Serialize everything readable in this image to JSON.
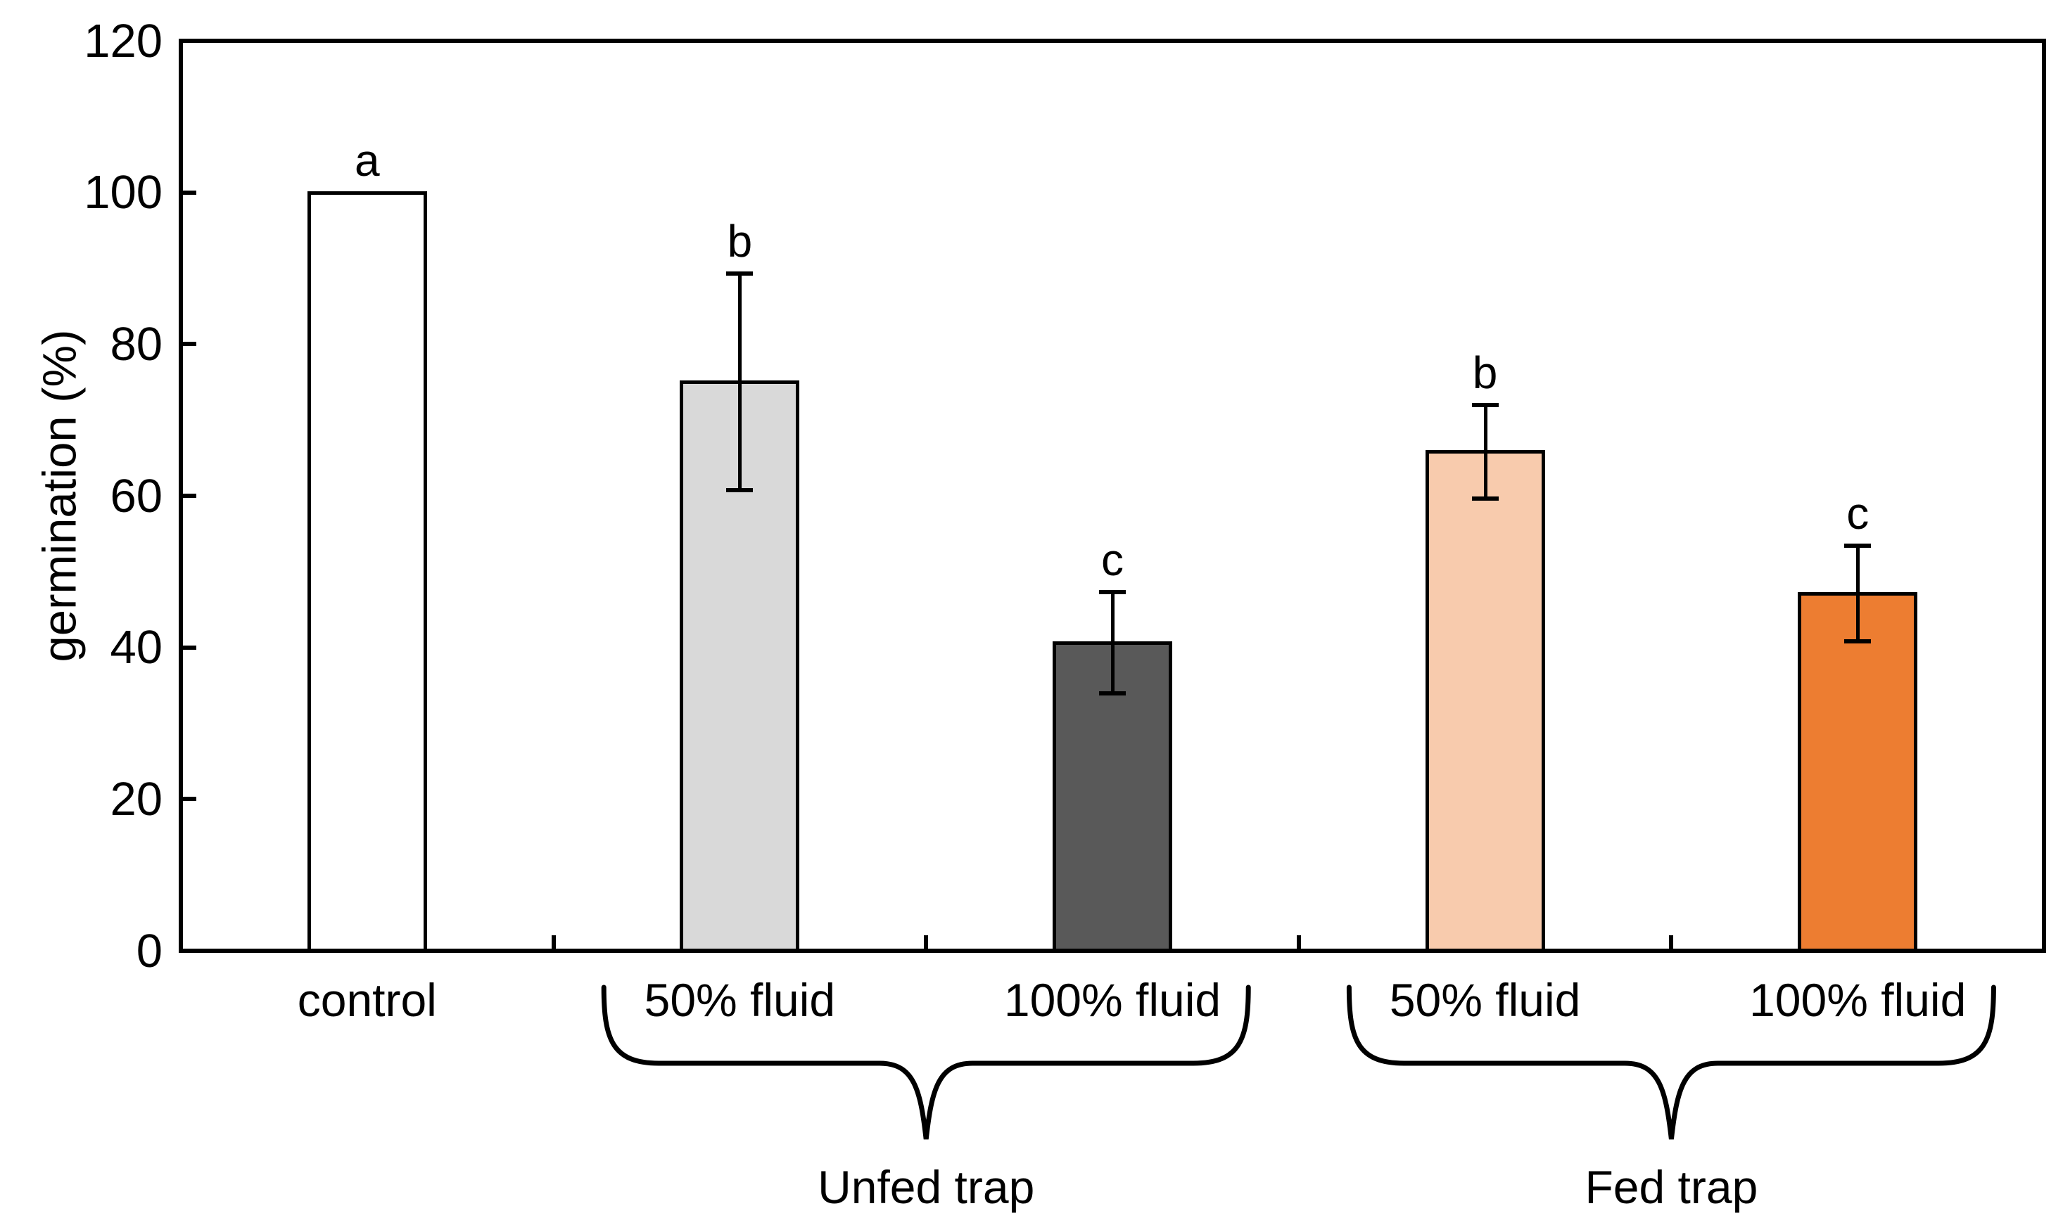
{
  "chart_data": {
    "type": "bar",
    "title": "",
    "xlabel": "",
    "ylabel": "germination (%)",
    "ylim": [
      0,
      120
    ],
    "yticks": [
      0,
      20,
      40,
      60,
      80,
      100,
      120
    ],
    "grid": false,
    "legend": "none",
    "frame": "full-box",
    "categories": [
      "control",
      "50% fluid",
      "100% fluid",
      "50% fluid",
      "100% fluid"
    ],
    "series": [
      {
        "name": "germination",
        "values": [
          100,
          75,
          40.6,
          65.8,
          47.1
        ],
        "errors": [
          null,
          14.3,
          6.7,
          6.2,
          6.3
        ],
        "significance_letters": [
          "a",
          "b",
          "c",
          "b",
          "c"
        ],
        "bar_fill_colors": [
          "#ffffff",
          "#d9d9d9",
          "#595959",
          "#f8cbad",
          "#ed7d31"
        ],
        "bar_edge_color": "#000000"
      }
    ],
    "groups": [
      {
        "label": "Unfed trap",
        "category_indices": [
          1,
          2
        ]
      },
      {
        "label": "Fed trap",
        "category_indices": [
          3,
          4
        ]
      }
    ],
    "annotation_style": {
      "error_bar_color": "#000000",
      "brace_color": "#000000",
      "text_color": "#000000"
    }
  }
}
